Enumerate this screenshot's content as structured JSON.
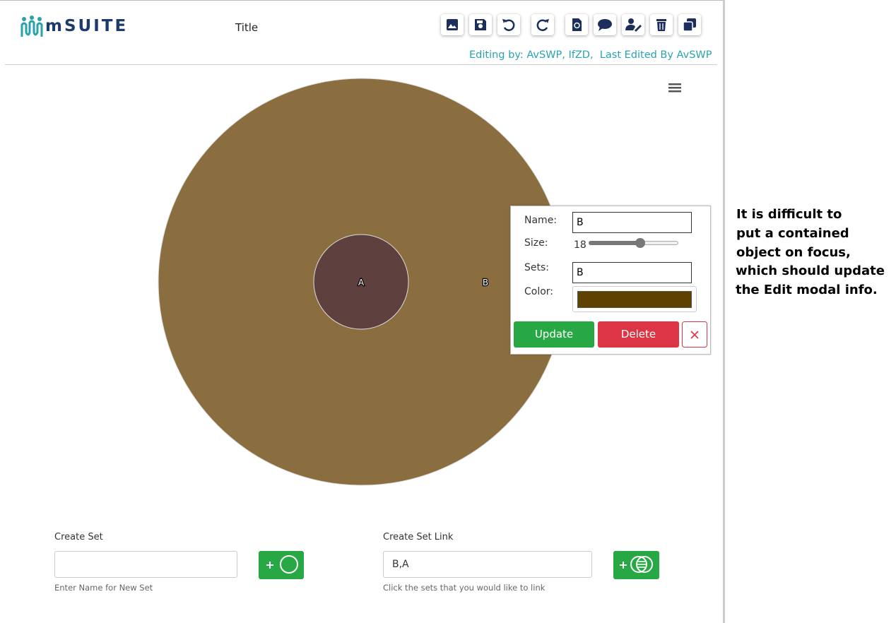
{
  "header": {
    "logo": "mSUITE",
    "title": "Title",
    "editing_info": "Editing by: AvSWP, IfZD,  Last Edited By AvSWP"
  },
  "canvas": {
    "sets": [
      {
        "label": "B",
        "color": "#8a6e3f"
      },
      {
        "label": "A",
        "color": "#5e403e"
      }
    ]
  },
  "edit_modal": {
    "name_label": "Name:",
    "name_value": "B",
    "size_label": "Size:",
    "size_value": "18",
    "sets_label": "Sets:",
    "sets_value": "B",
    "color_label": "Color:",
    "color_value": "#5f4100",
    "update_button": "Update",
    "delete_button": "Delete"
  },
  "create_set": {
    "label": "Create Set",
    "hint": "Enter Name for New Set"
  },
  "create_link": {
    "label": "Create Set Link",
    "value": "B,A",
    "hint": "Click the sets that you would like to link"
  },
  "annotation": {
    "lines": [
      "It is difficult to",
      "put a contained",
      "object on focus,",
      "which should update",
      "the Edit modal info."
    ]
  }
}
